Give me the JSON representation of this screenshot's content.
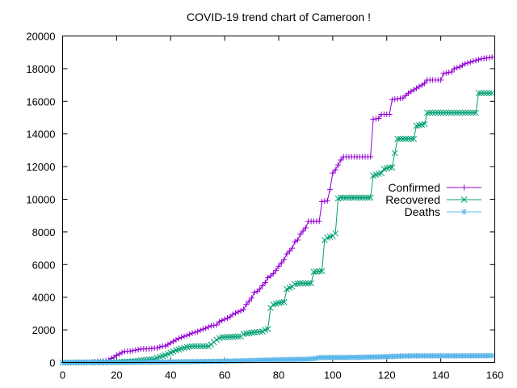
{
  "chart_data": {
    "type": "line",
    "title": "COVID-19 trend chart of Cameroon !",
    "xlabel": "",
    "ylabel": "",
    "xlim": [
      0,
      160
    ],
    "ylim": [
      0,
      20000
    ],
    "x_ticks": [
      "0",
      "20",
      "40",
      "60",
      "80",
      "100",
      "120",
      "140",
      "160"
    ],
    "y_ticks": [
      "0",
      "2000",
      "4000",
      "6000",
      "8000",
      "10000",
      "12000",
      "14000",
      "16000",
      "18000",
      "20000"
    ],
    "grid": false,
    "legend_position": "right",
    "series": [
      {
        "name": "Confirmed",
        "color": "#9400d3",
        "marker": "plus",
        "points": [
          [
            0,
            0
          ],
          [
            5,
            5
          ],
          [
            10,
            30
          ],
          [
            15,
            80
          ],
          [
            17,
            140
          ],
          [
            18,
            250
          ],
          [
            19,
            320
          ],
          [
            20,
            450
          ],
          [
            21,
            520
          ],
          [
            22,
            620
          ],
          [
            23,
            680
          ],
          [
            25,
            700
          ],
          [
            27,
            760
          ],
          [
            29,
            830
          ],
          [
            32,
            840
          ],
          [
            35,
            900
          ],
          [
            37,
            1000
          ],
          [
            38,
            1010
          ],
          [
            40,
            1200
          ],
          [
            41,
            1300
          ],
          [
            43,
            1480
          ],
          [
            45,
            1600
          ],
          [
            46,
            1650
          ],
          [
            48,
            1800
          ],
          [
            50,
            1900
          ],
          [
            52,
            2050
          ],
          [
            53,
            2100
          ],
          [
            55,
            2250
          ],
          [
            57,
            2300
          ],
          [
            58,
            2500
          ],
          [
            60,
            2650
          ],
          [
            62,
            2800
          ],
          [
            63,
            2950
          ],
          [
            65,
            3100
          ],
          [
            67,
            3250
          ],
          [
            68,
            3550
          ],
          [
            70,
            3950
          ],
          [
            71,
            4300
          ],
          [
            72,
            4350
          ],
          [
            73,
            4500
          ],
          [
            74,
            4700
          ],
          [
            75,
            4900
          ],
          [
            76,
            5200
          ],
          [
            77,
            5300
          ],
          [
            78,
            5450
          ],
          [
            79,
            5650
          ],
          [
            80,
            5900
          ],
          [
            82,
            6300
          ],
          [
            83,
            6650
          ],
          [
            85,
            7000
          ],
          [
            86,
            7400
          ],
          [
            87,
            7500
          ],
          [
            88,
            7850
          ],
          [
            89,
            8050
          ],
          [
            90,
            8250
          ],
          [
            91,
            8650
          ],
          [
            95,
            8650
          ],
          [
            96,
            9850
          ],
          [
            98,
            9900
          ],
          [
            99,
            10600
          ],
          [
            100,
            11600
          ],
          [
            101,
            11800
          ],
          [
            102,
            12100
          ],
          [
            103,
            12400
          ],
          [
            104,
            12600
          ],
          [
            114,
            12600
          ],
          [
            115,
            14900
          ],
          [
            117,
            14950
          ],
          [
            118,
            15200
          ],
          [
            121,
            15200
          ],
          [
            122,
            16100
          ],
          [
            126,
            16200
          ],
          [
            128,
            16500
          ],
          [
            130,
            16700
          ],
          [
            132,
            16900
          ],
          [
            134,
            17100
          ],
          [
            135,
            17300
          ],
          [
            140,
            17300
          ],
          [
            141,
            17700
          ],
          [
            144,
            17800
          ],
          [
            145,
            18000
          ],
          [
            147,
            18100
          ],
          [
            149,
            18300
          ],
          [
            151,
            18400
          ],
          [
            153,
            18500
          ],
          [
            155,
            18600
          ],
          [
            159,
            18700
          ]
        ]
      },
      {
        "name": "Recovered",
        "color": "#009e73",
        "marker": "cross",
        "points": [
          [
            0,
            0
          ],
          [
            10,
            10
          ],
          [
            20,
            30
          ],
          [
            25,
            60
          ],
          [
            28,
            100
          ],
          [
            30,
            150
          ],
          [
            32,
            180
          ],
          [
            34,
            220
          ],
          [
            36,
            350
          ],
          [
            38,
            450
          ],
          [
            40,
            600
          ],
          [
            42,
            750
          ],
          [
            44,
            850
          ],
          [
            46,
            950
          ],
          [
            48,
            1000
          ],
          [
            54,
            1000
          ],
          [
            55,
            1100
          ],
          [
            57,
            1400
          ],
          [
            58,
            1500
          ],
          [
            59,
            1550
          ],
          [
            66,
            1600
          ],
          [
            67,
            1750
          ],
          [
            69,
            1800
          ],
          [
            71,
            1850
          ],
          [
            74,
            1900
          ],
          [
            75,
            2000
          ],
          [
            76,
            2050
          ],
          [
            77,
            3350
          ],
          [
            78,
            3550
          ],
          [
            80,
            3650
          ],
          [
            82,
            3700
          ],
          [
            83,
            4500
          ],
          [
            85,
            4650
          ],
          [
            86,
            4800
          ],
          [
            88,
            4850
          ],
          [
            92,
            4850
          ],
          [
            93,
            5550
          ],
          [
            96,
            5600
          ],
          [
            97,
            7500
          ],
          [
            98,
            7650
          ],
          [
            100,
            7750
          ],
          [
            101,
            7900
          ],
          [
            102,
            10050
          ],
          [
            103,
            10100
          ],
          [
            114,
            10100
          ],
          [
            115,
            11450
          ],
          [
            116,
            11500
          ],
          [
            118,
            11600
          ],
          [
            119,
            11850
          ],
          [
            121,
            11950
          ],
          [
            122,
            11950
          ],
          [
            124,
            13700
          ],
          [
            130,
            13700
          ],
          [
            131,
            14500
          ],
          [
            134,
            14600
          ],
          [
            135,
            15300
          ],
          [
            153,
            15300
          ],
          [
            154,
            16500
          ],
          [
            159,
            16500
          ]
        ]
      },
      {
        "name": "Deaths",
        "color": "#56b4e9",
        "marker": "star",
        "points": [
          [
            0,
            0
          ],
          [
            20,
            10
          ],
          [
            30,
            20
          ],
          [
            40,
            40
          ],
          [
            50,
            60
          ],
          [
            60,
            80
          ],
          [
            70,
            120
          ],
          [
            80,
            170
          ],
          [
            90,
            200
          ],
          [
            93,
            230
          ],
          [
            95,
            300
          ],
          [
            100,
            310
          ],
          [
            105,
            310
          ],
          [
            110,
            320
          ],
          [
            115,
            340
          ],
          [
            120,
            360
          ],
          [
            125,
            390
          ],
          [
            130,
            410
          ],
          [
            135,
            410
          ],
          [
            140,
            410
          ],
          [
            145,
            410
          ],
          [
            150,
            410
          ],
          [
            155,
            415
          ],
          [
            159,
            420
          ]
        ]
      }
    ]
  }
}
